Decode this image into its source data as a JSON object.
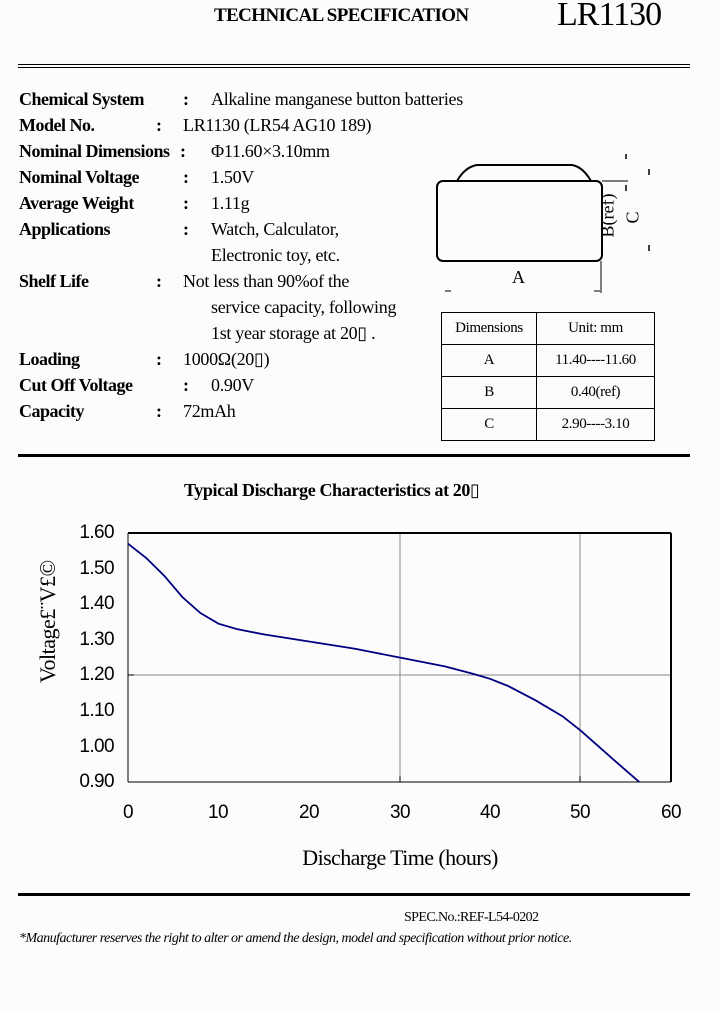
{
  "header": {
    "title": "TECHNICAL SPECIFICATION",
    "model": "LR1130"
  },
  "specs": [
    {
      "label": "Chemical System",
      "value": "Alkaline manganese button batteries"
    },
    {
      "label": "Model No.",
      "value": "LR1130 (LR54 AG10 189)"
    },
    {
      "label": "Nominal Dimensions",
      "value": "Φ11.60×3.10mm"
    },
    {
      "label": "Nominal Voltage",
      "value": "1.50V"
    },
    {
      "label": "Average Weight",
      "value": "1.11g"
    },
    {
      "label": "Applications",
      "value": "Watch, Calculator,",
      "continuation": [
        "Electronic toy, etc."
      ]
    },
    {
      "label": "Shelf Life",
      "value": "Not less than 90%of the",
      "continuation": [
        "service capacity, following",
        "1st year storage at 20▯ ."
      ]
    },
    {
      "label": "Loading",
      "value": "1000Ω(20▯)"
    },
    {
      "label": "Cut Off Voltage",
      "value": "0.90V"
    },
    {
      "label": "Capacity",
      "value": "72mAh"
    }
  ],
  "colon": ":",
  "diagram": {
    "label_a": "A",
    "label_b": "B(ref)",
    "label_c": "C"
  },
  "dimensions_table": {
    "headers": [
      "Dimensions",
      "Unit: mm"
    ],
    "rows": [
      [
        "A",
        "11.40----11.60"
      ],
      [
        "B",
        "0.40(ref)"
      ],
      [
        "C",
        "2.90----3.10"
      ]
    ]
  },
  "chart": {
    "title": "Typical Discharge Characteristics at 20▯"
  },
  "chart_data": {
    "type": "line",
    "title": "Typical Discharge Characteristics at 20▯",
    "xlabel": "Discharge Time (hours)",
    "ylabel": "Voltage£¨V£©",
    "xlim": [
      0,
      60
    ],
    "ylim": [
      0.9,
      1.6
    ],
    "x_ticks": [
      "0",
      "10",
      "20",
      "30",
      "40",
      "50",
      "60"
    ],
    "y_ticks": [
      "1.60",
      "1.50",
      "1.40",
      "1.30",
      "1.20",
      "1.10",
      "1.00",
      "0.90"
    ],
    "grid": {
      "vertical_at_x": [
        30,
        50
      ],
      "horizontal_at_y": [
        1.2
      ]
    },
    "legend": null,
    "series": [
      {
        "name": "Discharge curve",
        "color": "#000080",
        "x": [
          0,
          2,
          4,
          6,
          8,
          10,
          12,
          15,
          20,
          25,
          30,
          35,
          38,
          40,
          42,
          45,
          48,
          50,
          52,
          54,
          56.5
        ],
        "y": [
          1.57,
          1.53,
          1.48,
          1.42,
          1.375,
          1.345,
          1.33,
          1.315,
          1.295,
          1.275,
          1.25,
          1.225,
          1.205,
          1.19,
          1.17,
          1.13,
          1.085,
          1.045,
          1.0,
          0.955,
          0.9
        ]
      }
    ]
  },
  "footer": {
    "spec_no": "SPEC.No.:REF-L54-0202",
    "notice": "*Manufacturer reserves the right to alter or amend the design, model and specification without prior notice."
  }
}
